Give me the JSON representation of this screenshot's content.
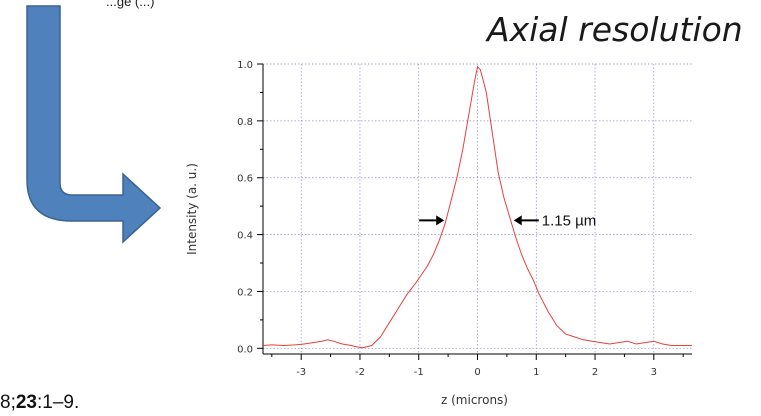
{
  "slide": {
    "top_text": "...ge (...)",
    "title": "Axial resolution",
    "citation_prefix": "8;",
    "citation_volume": "23",
    "citation_suffix": ":1–9."
  },
  "colors": {
    "arrow_fill": "#4f81bd",
    "arrow_stroke": "#3a6491",
    "curve": "#e8403c",
    "grid": "#9090c8"
  },
  "chart_data": {
    "type": "line",
    "xlabel": "z (microns)",
    "ylabel": "Intensity (a. u.)",
    "xlim": [
      -3.65,
      3.65
    ],
    "ylim": [
      -0.02,
      1.0
    ],
    "xticks": [
      -3,
      -2,
      -1,
      0,
      1,
      2,
      3
    ],
    "yticks": [
      0.0,
      0.2,
      0.4,
      0.6,
      0.8,
      1.0
    ],
    "xtick_labels": [
      "-3",
      "-2",
      "-1",
      "0",
      "1",
      "2",
      "3"
    ],
    "ytick_labels": [
      "0.0",
      "0.2",
      "0.4",
      "0.6",
      "0.8",
      "1.0"
    ],
    "grid": true,
    "annotation": "1.15 µm",
    "fwhm_left": -0.55,
    "fwhm_right": 0.6,
    "fwhm_level": 0.45,
    "series": [
      {
        "x": [
          -3.65,
          -3.5,
          -3.3,
          -3.1,
          -2.95,
          -2.8,
          -2.65,
          -2.55,
          -2.45,
          -2.3,
          -2.15,
          -2.05,
          -1.95,
          -1.8,
          -1.65,
          -1.5,
          -1.35,
          -1.2,
          -1.05,
          -0.95,
          -0.85,
          -0.75,
          -0.65,
          -0.55,
          -0.45,
          -0.35,
          -0.25,
          -0.15,
          -0.05,
          0.0,
          0.05,
          0.15,
          0.25,
          0.35,
          0.45,
          0.55,
          0.65,
          0.75,
          0.85,
          0.95,
          1.05,
          1.2,
          1.35,
          1.5,
          1.65,
          1.8,
          1.95,
          2.1,
          2.25,
          2.4,
          2.55,
          2.7,
          2.85,
          3.0,
          3.15,
          3.3,
          3.45,
          3.65
        ],
        "y": [
          0.01,
          0.012,
          0.01,
          0.012,
          0.015,
          0.02,
          0.025,
          0.03,
          0.025,
          0.015,
          0.01,
          0.005,
          0.002,
          0.01,
          0.04,
          0.09,
          0.14,
          0.19,
          0.23,
          0.26,
          0.29,
          0.33,
          0.38,
          0.44,
          0.52,
          0.6,
          0.7,
          0.82,
          0.94,
          0.99,
          0.98,
          0.9,
          0.76,
          0.62,
          0.53,
          0.46,
          0.39,
          0.33,
          0.28,
          0.24,
          0.19,
          0.13,
          0.08,
          0.05,
          0.04,
          0.03,
          0.025,
          0.02,
          0.015,
          0.02,
          0.025,
          0.015,
          0.02,
          0.025,
          0.015,
          0.01,
          0.01,
          0.01
        ]
      }
    ]
  }
}
